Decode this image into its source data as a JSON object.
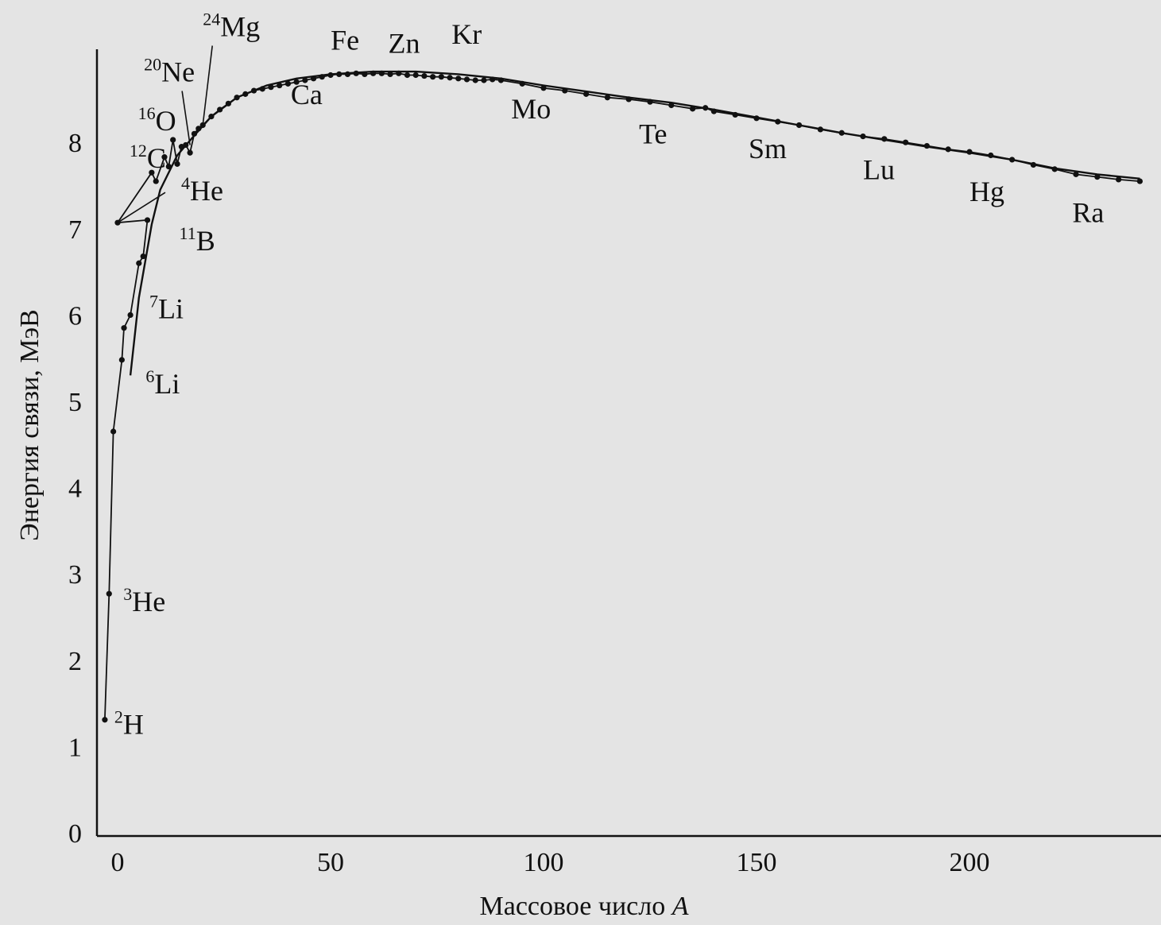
{
  "chart_data": {
    "type": "line",
    "xlabel": "Массовое число",
    "xlabel_var": "A",
    "ylabel": "Энергия связи, МэВ",
    "xlim": [
      -5,
      245
    ],
    "ylim": [
      0,
      9
    ],
    "xticks": [
      0,
      50,
      100,
      150,
      200
    ],
    "yticks": [
      0,
      1,
      2,
      3,
      4,
      5,
      6,
      7,
      8
    ],
    "grid": false,
    "series": [
      {
        "kind": "measured",
        "points": [
          [
            -3,
            1.31
          ],
          [
            -2,
            2.77
          ],
          [
            -1,
            4.65
          ],
          [
            1,
            5.48
          ],
          [
            1.5,
            5.85
          ],
          [
            3,
            6.0
          ],
          [
            5,
            6.6
          ],
          [
            6,
            6.68
          ],
          [
            7,
            7.1
          ],
          [
            0,
            7.07
          ],
          [
            8,
            7.65
          ],
          [
            9,
            7.55
          ],
          [
            11,
            7.83
          ],
          [
            12,
            7.72
          ],
          [
            13,
            8.03
          ],
          [
            14,
            7.75
          ],
          [
            15,
            7.95
          ],
          [
            16,
            7.97
          ],
          [
            17,
            7.88
          ],
          [
            18,
            8.1
          ],
          [
            19,
            8.16
          ],
          [
            20,
            8.2
          ],
          [
            22,
            8.3
          ],
          [
            24,
            8.38
          ],
          [
            26,
            8.45
          ],
          [
            28,
            8.52
          ],
          [
            30,
            8.56
          ],
          [
            32,
            8.6
          ],
          [
            34,
            8.62
          ],
          [
            36,
            8.64
          ],
          [
            38,
            8.66
          ],
          [
            40,
            8.68
          ],
          [
            42,
            8.7
          ],
          [
            44,
            8.72
          ],
          [
            46,
            8.74
          ],
          [
            48,
            8.76
          ],
          [
            50,
            8.78
          ],
          [
            52,
            8.79
          ],
          [
            54,
            8.79
          ],
          [
            56,
            8.8
          ],
          [
            58,
            8.79
          ],
          [
            60,
            8.8
          ],
          [
            62,
            8.8
          ],
          [
            64,
            8.79
          ],
          [
            66,
            8.8
          ],
          [
            68,
            8.78
          ],
          [
            70,
            8.78
          ],
          [
            72,
            8.77
          ],
          [
            74,
            8.76
          ],
          [
            76,
            8.76
          ],
          [
            78,
            8.75
          ],
          [
            80,
            8.74
          ],
          [
            82,
            8.73
          ],
          [
            84,
            8.72
          ],
          [
            86,
            8.72
          ],
          [
            88,
            8.73
          ],
          [
            90,
            8.72
          ],
          [
            95,
            8.68
          ],
          [
            100,
            8.63
          ],
          [
            105,
            8.6
          ],
          [
            110,
            8.56
          ],
          [
            115,
            8.52
          ],
          [
            120,
            8.5
          ],
          [
            125,
            8.47
          ],
          [
            130,
            8.43
          ],
          [
            135,
            8.39
          ],
          [
            138,
            8.4
          ],
          [
            140,
            8.36
          ],
          [
            145,
            8.32
          ],
          [
            150,
            8.28
          ],
          [
            155,
            8.24
          ],
          [
            160,
            8.2
          ],
          [
            165,
            8.15
          ],
          [
            170,
            8.11
          ],
          [
            175,
            8.07
          ],
          [
            180,
            8.04
          ],
          [
            185,
            8.0
          ],
          [
            190,
            7.96
          ],
          [
            195,
            7.92
          ],
          [
            200,
            7.89
          ],
          [
            205,
            7.85
          ],
          [
            210,
            7.8
          ],
          [
            215,
            7.74
          ],
          [
            220,
            7.69
          ],
          [
            225,
            7.63
          ],
          [
            230,
            7.6
          ],
          [
            235,
            7.57
          ],
          [
            240,
            7.55
          ]
        ]
      },
      {
        "kind": "smooth-fit",
        "points": [
          [
            3,
            5.3
          ],
          [
            5,
            6.2
          ],
          [
            8,
            7.05
          ],
          [
            10,
            7.45
          ],
          [
            14,
            7.85
          ],
          [
            18,
            8.08
          ],
          [
            22,
            8.3
          ],
          [
            28,
            8.52
          ],
          [
            35,
            8.66
          ],
          [
            42,
            8.74
          ],
          [
            50,
            8.79
          ],
          [
            60,
            8.82
          ],
          [
            70,
            8.82
          ],
          [
            80,
            8.79
          ],
          [
            90,
            8.74
          ],
          [
            100,
            8.66
          ],
          [
            110,
            8.59
          ],
          [
            120,
            8.52
          ],
          [
            130,
            8.46
          ],
          [
            140,
            8.38
          ],
          [
            150,
            8.29
          ],
          [
            160,
            8.2
          ],
          [
            170,
            8.11
          ],
          [
            180,
            8.03
          ],
          [
            190,
            7.95
          ],
          [
            200,
            7.88
          ],
          [
            210,
            7.8
          ],
          [
            220,
            7.7
          ],
          [
            230,
            7.63
          ],
          [
            240,
            7.58
          ]
        ]
      }
    ],
    "annotations": [
      {
        "mass": "2",
        "symbol": "H",
        "x": -3,
        "y": 1.31
      },
      {
        "mass": "3",
        "symbol": "He",
        "x": -2,
        "y": 2.77
      },
      {
        "mass": "6",
        "symbol": "Li",
        "x": 1,
        "y": 5.48
      },
      {
        "mass": "7",
        "symbol": "Li",
        "x": 1.5,
        "y": 5.85
      },
      {
        "mass": "11",
        "symbol": "B",
        "x": 7,
        "y": 7.1
      },
      {
        "mass": "4",
        "symbol": "He",
        "x": 0,
        "y": 7.07
      },
      {
        "mass": "12",
        "symbol": "C",
        "x": 8,
        "y": 7.65
      },
      {
        "mass": "16",
        "symbol": "O",
        "x": 13,
        "y": 8.03
      },
      {
        "mass": "20",
        "symbol": "Ne",
        "x": 17,
        "y": 7.97
      },
      {
        "mass": "24",
        "symbol": "Mg",
        "x": 20,
        "y": 8.2
      },
      {
        "mass": "",
        "symbol": "Ca",
        "x": 44,
        "y": 8.72
      },
      {
        "mass": "",
        "symbol": "Fe",
        "x": 56,
        "y": 8.8
      },
      {
        "mass": "",
        "symbol": "Zn",
        "x": 68,
        "y": 8.78
      },
      {
        "mass": "",
        "symbol": "Kr",
        "x": 84,
        "y": 8.72
      },
      {
        "mass": "",
        "symbol": "Mo",
        "x": 98,
        "y": 8.63
      },
      {
        "mass": "",
        "symbol": "Te",
        "x": 128,
        "y": 8.45
      },
      {
        "mass": "",
        "symbol": "Sm",
        "x": 150,
        "y": 8.28
      },
      {
        "mass": "",
        "symbol": "Lu",
        "x": 175,
        "y": 8.07
      },
      {
        "mass": "",
        "symbol": "Hg",
        "x": 200,
        "y": 7.89
      },
      {
        "mass": "",
        "symbol": "Ra",
        "x": 226,
        "y": 7.63
      }
    ]
  }
}
